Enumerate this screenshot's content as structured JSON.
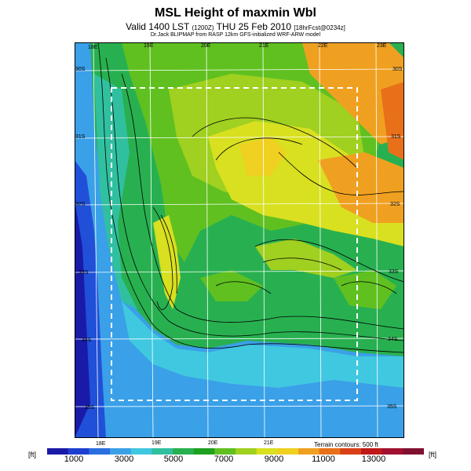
{
  "header": {
    "title": "MSL Height of maxmin Wbl",
    "subtitle_main": "Valid 1400 LST",
    "subtitle_paren1": "(1200Z)",
    "subtitle_date": "THU 25 Feb 2010",
    "subtitle_paren2": "[18hrFcst@0234z]",
    "credit": "Dr.Jack BLIPMAP from RASP 12km GFS-initialized WRF-ARW model"
  },
  "map": {
    "lon_labels_top": [
      "18E",
      "19E",
      "20E",
      "21E",
      "22E",
      "23E"
    ],
    "lon_labels_bottom": [
      "18E",
      "19E",
      "20E",
      "21E"
    ],
    "lat_labels_left": [
      "30S",
      "31S",
      "32S",
      "33S",
      "34S",
      "35S"
    ],
    "lat_labels_right": [
      "30S",
      "31S",
      "32S",
      "33S",
      "34S",
      "35S"
    ],
    "terrain_note": "Terrain contours: 500 ft"
  },
  "colorbar": {
    "unit_left": "[ft]",
    "unit_right": "[ft]",
    "tick_labels": [
      "1000",
      "3000",
      "5000",
      "7000",
      "9000",
      "11000",
      "13000"
    ],
    "colors": [
      "#1a1aa8",
      "#1f3fd0",
      "#2a6ee0",
      "#3aa0e8",
      "#40c8e0",
      "#30c0a0",
      "#28b050",
      "#20a020",
      "#60c020",
      "#a0d020",
      "#d8e020",
      "#f0d020",
      "#f0a020",
      "#e87018",
      "#d84018",
      "#c01818",
      "#a01030",
      "#801030"
    ]
  }
}
